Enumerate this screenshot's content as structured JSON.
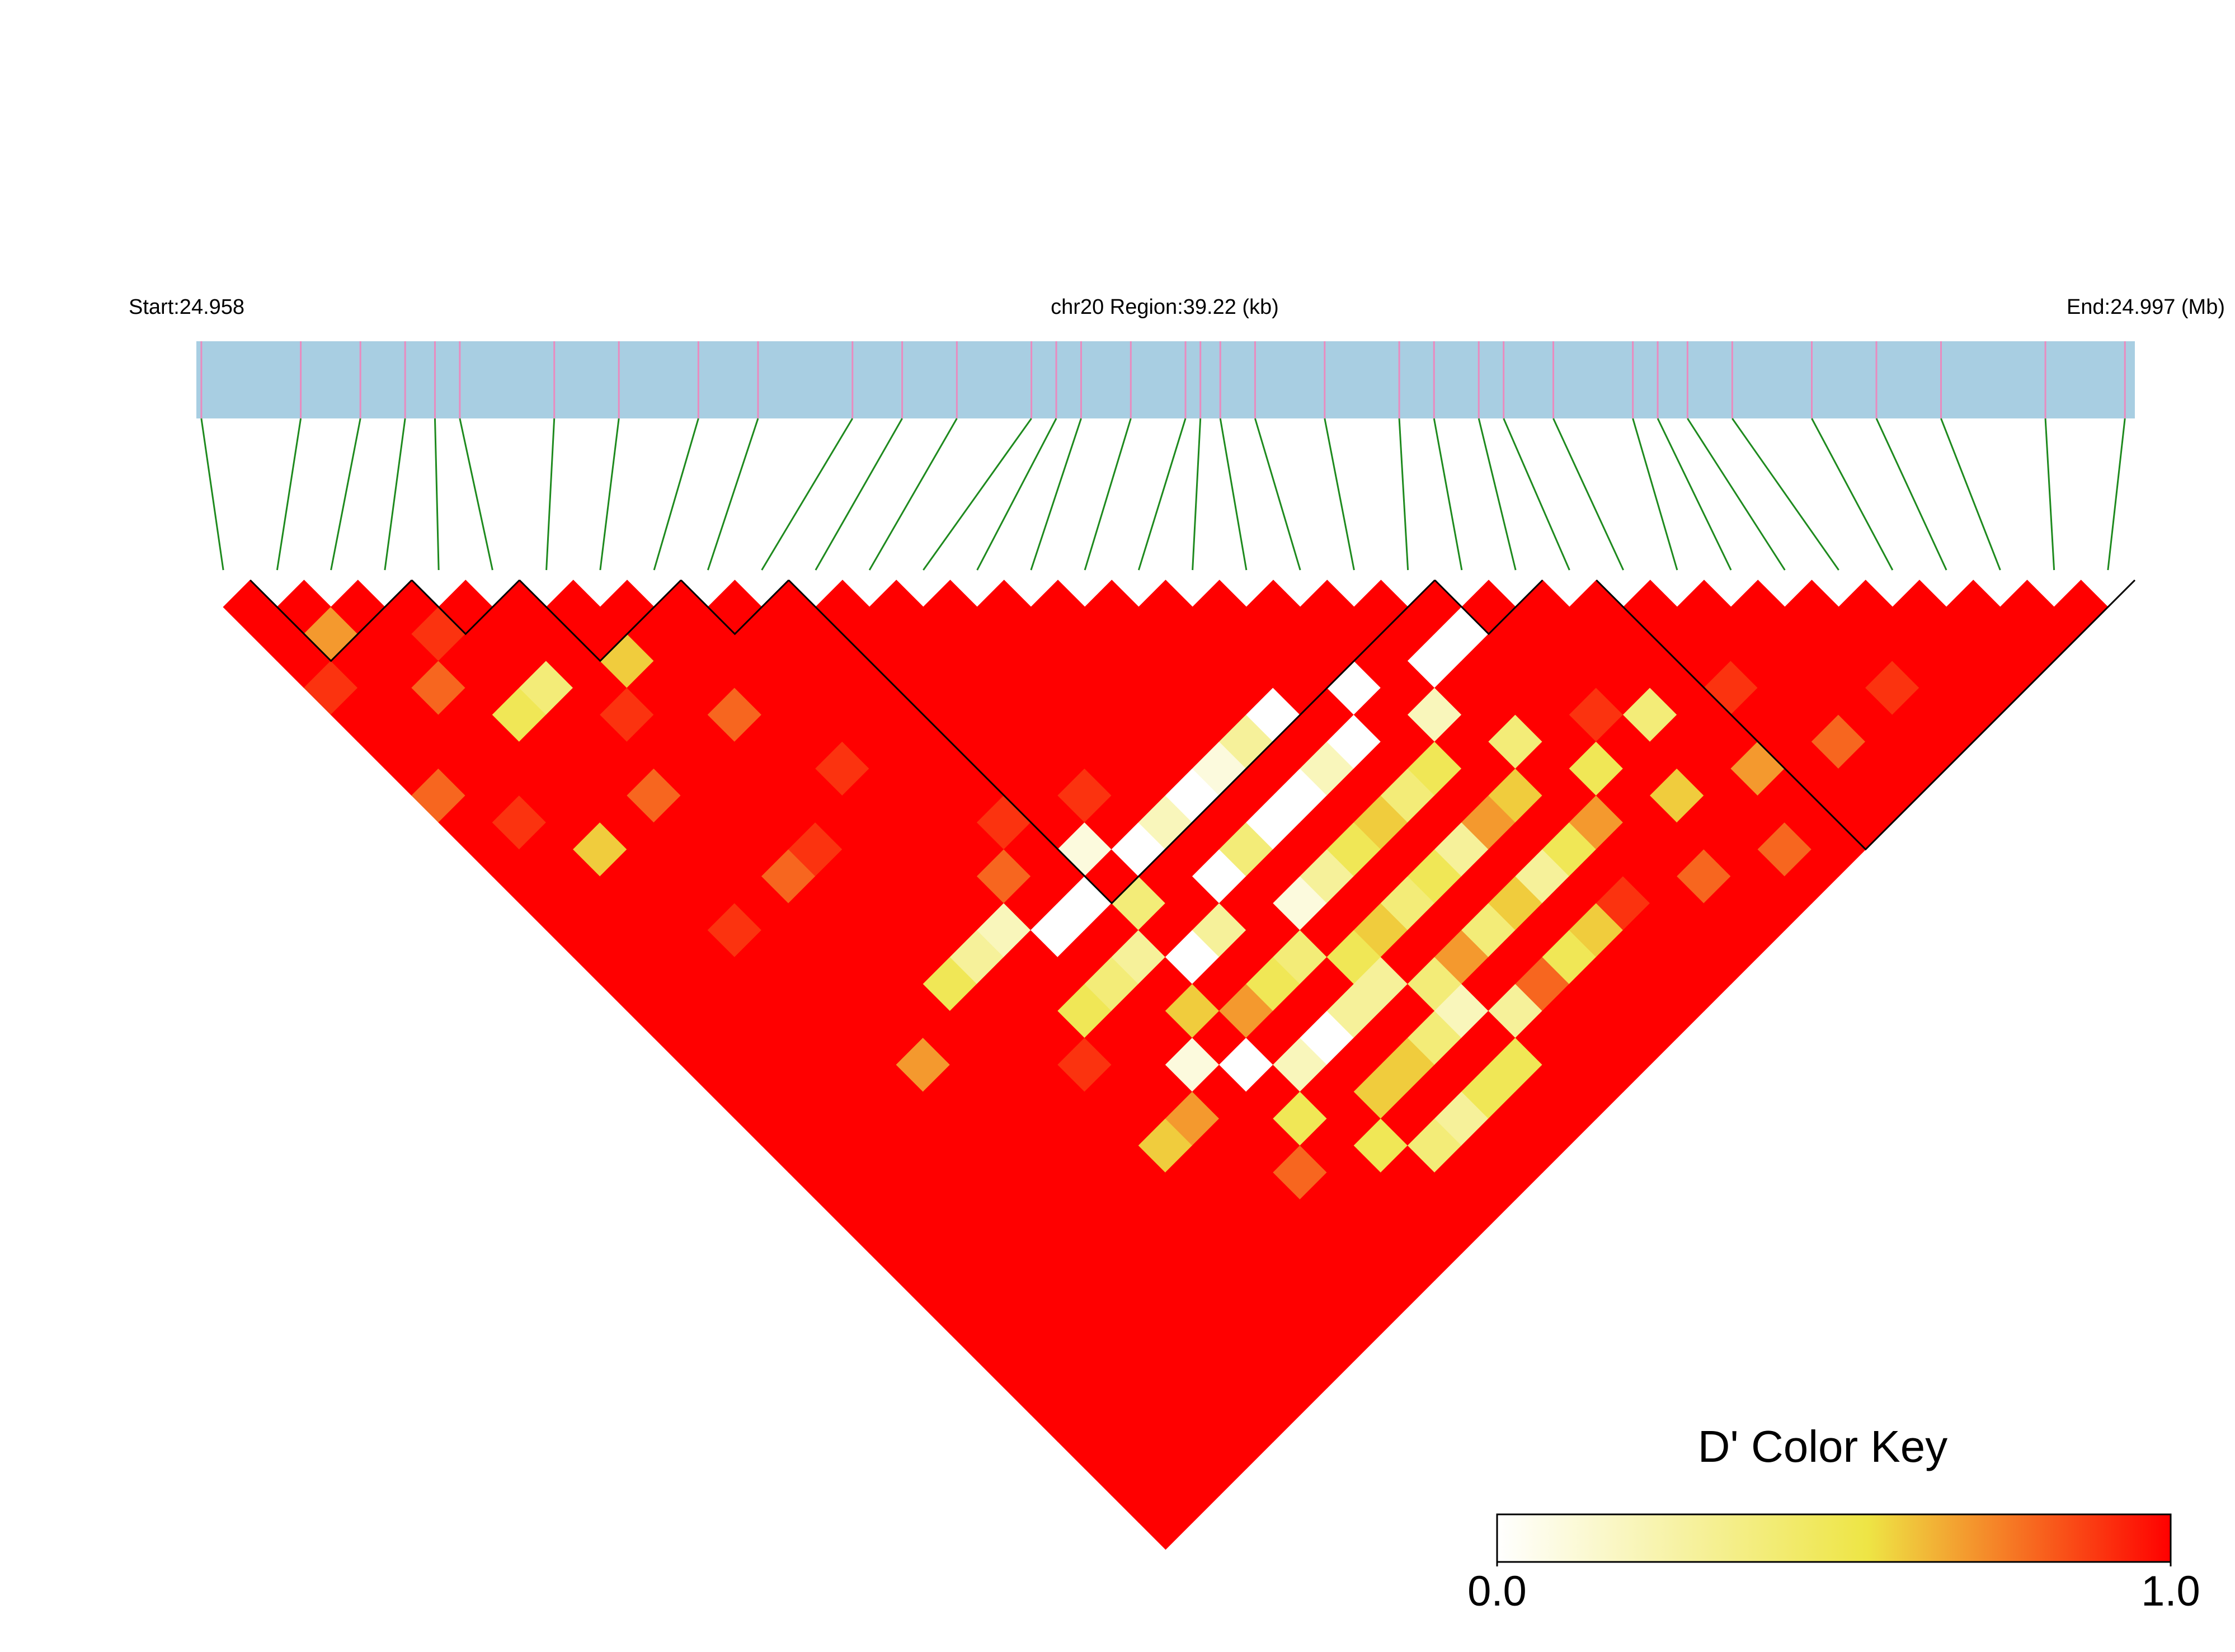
{
  "chart_data": {
    "type": "heatmap",
    "start_label": "Start:24.958",
    "region_label": "chr20 Region:39.22 (kb)",
    "end_label": "End:24.997 (Mb)",
    "xlim": [
      24.958,
      24.997
    ],
    "positions": [
      24.9581,
      24.9601,
      24.9613,
      24.9622,
      24.9628,
      24.9633,
      24.9652,
      24.9665,
      24.9681,
      24.9693,
      24.9712,
      24.9722,
      24.9733,
      24.9748,
      24.9753,
      24.9758,
      24.9768,
      24.9779,
      24.9782,
      24.9786,
      24.9793,
      24.9807,
      24.9822,
      24.9829,
      24.9838,
      24.9843,
      24.9853,
      24.9869,
      24.9874,
      24.988,
      24.9889,
      24.9905,
      24.9918,
      24.9931,
      24.9952,
      24.9968
    ],
    "bar_color": "#a8cee2",
    "snp_color": "#e98bbf",
    "link_color": "#1e8a1e",
    "values": [
      [
        1,
        1,
        1,
        0.9,
        1,
        1,
        1,
        0.8,
        1,
        1,
        1,
        1,
        1,
        1,
        1,
        1,
        1,
        1,
        1,
        1,
        1,
        1,
        1,
        1,
        1,
        1,
        1,
        1,
        1,
        1,
        1,
        1,
        1,
        1,
        1
      ],
      [
        1,
        0.7,
        1,
        1,
        1,
        1,
        1,
        1,
        0.9,
        1,
        1,
        1,
        1,
        1,
        1,
        1,
        1,
        1,
        1,
        1,
        1,
        1,
        1,
        1,
        1,
        1,
        1,
        1,
        1,
        1,
        1,
        1,
        1,
        1
      ],
      [
        1,
        1,
        1,
        0.8,
        1,
        1,
        1,
        1,
        1,
        0.6,
        1,
        1,
        1,
        1,
        1,
        1,
        1,
        1,
        1,
        1,
        1,
        1,
        1,
        1,
        1,
        1,
        1,
        1,
        1,
        1,
        1,
        1,
        1
      ],
      [
        1,
        0.9,
        1,
        1,
        0.5,
        1,
        1,
        1,
        1,
        1,
        1,
        1,
        0.9,
        1,
        1,
        1,
        1,
        1,
        1,
        1,
        1,
        1,
        1,
        1,
        1,
        1,
        1,
        1,
        1,
        1,
        1,
        1
      ],
      [
        1,
        1,
        1,
        0.4,
        1,
        1,
        1,
        0.8,
        1,
        1,
        1,
        1,
        1,
        1,
        1,
        1,
        1,
        0.7,
        1,
        1,
        1,
        1,
        1,
        1,
        1,
        1,
        1,
        1,
        1,
        1,
        1
      ],
      [
        1,
        1,
        1,
        1,
        0.9,
        1,
        1,
        1,
        1,
        1,
        0.8,
        1,
        1,
        1,
        1,
        1,
        1,
        1,
        1,
        1,
        1,
        1,
        1,
        1,
        1,
        1,
        1,
        1,
        1,
        1
      ],
      [
        1,
        1,
        0.6,
        1,
        1,
        1,
        1,
        1,
        1,
        0.9,
        1,
        1,
        1,
        1,
        0.5,
        1,
        1,
        1,
        1,
        1,
        1,
        1,
        1,
        1,
        1,
        1,
        1,
        1,
        1
      ],
      [
        1,
        1,
        1,
        1,
        0.8,
        1,
        1,
        1,
        1,
        1,
        1,
        1,
        1,
        0.3,
        1,
        1,
        1,
        0.9,
        1,
        1,
        0.6,
        1,
        1,
        1,
        1,
        1,
        1,
        1
      ],
      [
        1,
        1,
        1,
        1,
        1,
        1,
        0.9,
        1,
        1,
        1,
        1,
        1,
        0.2,
        1,
        1,
        0.5,
        1,
        1,
        1,
        0.7,
        1,
        1,
        1,
        1,
        1,
        1,
        1
      ],
      [
        1,
        1,
        1,
        1,
        1,
        1,
        1,
        1,
        1,
        1,
        0.8,
        1,
        0,
        1,
        0.4,
        1,
        1,
        0.1,
        1,
        1,
        1,
        0.8,
        1,
        1,
        1,
        1
      ],
      [
        1,
        1,
        1,
        1,
        1,
        1,
        1,
        1,
        0.9,
        1,
        1,
        0,
        1,
        0.3,
        1,
        0.6,
        1,
        0,
        1,
        0.5,
        1,
        1,
        1,
        1,
        1
      ],
      [
        1,
        1,
        1,
        1,
        1,
        1,
        1,
        1,
        1,
        0.1,
        1,
        0.4,
        1,
        0,
        1,
        0.7,
        1,
        0.2,
        1,
        1,
        0.5,
        1,
        1,
        1
      ],
      [
        1,
        1,
        1,
        1,
        1,
        1,
        1,
        0.9,
        1,
        0,
        1,
        1,
        0.3,
        1,
        0.5,
        1,
        0,
        1,
        0.6,
        1,
        0.4,
        1,
        1
      ],
      [
        1,
        1,
        1,
        1,
        1,
        1,
        1,
        1,
        0.2,
        1,
        0,
        1,
        1,
        0.4,
        1,
        0.3,
        1,
        0.6,
        1,
        0.3,
        1,
        1
      ],
      [
        1,
        1,
        1,
        1,
        1,
        1,
        1,
        0,
        1,
        0.4,
        1,
        0.1,
        1,
        0.5,
        0.3,
        1,
        0.4,
        1,
        0.5,
        1,
        1
      ],
      [
        1,
        1,
        1,
        1,
        1,
        1,
        0.1,
        1,
        0,
        1,
        0.3,
        1,
        0.6,
        1,
        0.4,
        0.2,
        1,
        0.5,
        1,
        1
      ],
      [
        1,
        1,
        1,
        1,
        1,
        0.3,
        1,
        0,
        1,
        0.5,
        1,
        0.4,
        1,
        0.7,
        1,
        0.3,
        1,
        1,
        1
      ],
      [
        1,
        1,
        1,
        1,
        0,
        1,
        0.2,
        1,
        0.6,
        1,
        0.5,
        1,
        0.4,
        1,
        0.8,
        1,
        1,
        1
      ],
      [
        1,
        1,
        1,
        1,
        1,
        0,
        1,
        0.4,
        1,
        0.3,
        1,
        0.6,
        1,
        0.5,
        1,
        1,
        1
      ],
      [
        1,
        1,
        1,
        0,
        1,
        1,
        0.5,
        1,
        0.7,
        1,
        0.3,
        1,
        0.6,
        1,
        1,
        1
      ],
      [
        1,
        1,
        1,
        1,
        0.2,
        1,
        1,
        0.6,
        1,
        0.5,
        1,
        0.9,
        1,
        1,
        1
      ],
      [
        1,
        1,
        0,
        1,
        1,
        0.4,
        1,
        1,
        0.7,
        1,
        1,
        1,
        1,
        1
      ],
      [
        1,
        0,
        1,
        1,
        1,
        1,
        0.5,
        1,
        1,
        1,
        0.8,
        1,
        1
      ],
      [
        1,
        1,
        1,
        1,
        0.9,
        1,
        1,
        0.6,
        1,
        1,
        1,
        1
      ],
      [
        1,
        1,
        1,
        1,
        0.4,
        1,
        1,
        1,
        1,
        0.8,
        1
      ],
      [
        1,
        1,
        1,
        1,
        1,
        1,
        0.7,
        1,
        1,
        1
      ],
      [
        1,
        1,
        1,
        0.9,
        1,
        1,
        1,
        1,
        1
      ],
      [
        1,
        1,
        1,
        1,
        1,
        0.8,
        1,
        1
      ],
      [
        1,
        1,
        1,
        1,
        1,
        1,
        1
      ],
      [
        1,
        1,
        1,
        0.9,
        1,
        1
      ],
      [
        1,
        1,
        1,
        1,
        1
      ],
      [
        1,
        1,
        1,
        1
      ],
      [
        1,
        1,
        1
      ],
      [
        1,
        1
      ],
      [
        1
      ]
    ],
    "blocks": [
      [
        1,
        3
      ],
      [
        4,
        5
      ],
      [
        6,
        8
      ],
      [
        9,
        10
      ],
      [
        11,
        22
      ],
      [
        23,
        24
      ],
      [
        26,
        35
      ]
    ],
    "block_color": "#000000",
    "colorscale": [
      [
        0,
        "#ffffff"
      ],
      [
        0.55,
        "#eee545"
      ],
      [
        1,
        "#ff0000"
      ]
    ],
    "colorbar_title": "D' Color Key",
    "clim": [
      0,
      1
    ],
    "cticks": [
      {
        "value": 0,
        "label": "0.0"
      },
      {
        "value": 1,
        "label": "1.0"
      }
    ]
  }
}
